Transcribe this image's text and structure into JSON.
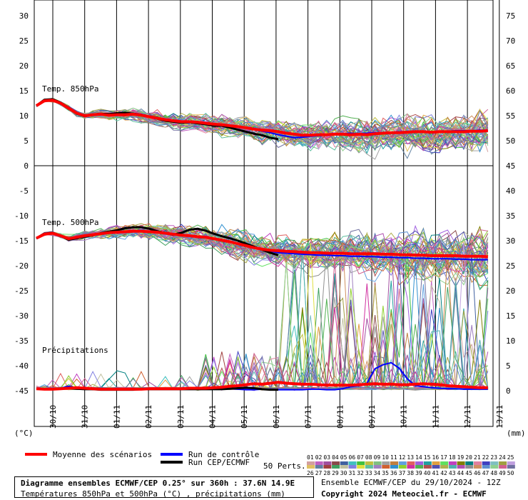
{
  "chart_data": {
    "type": "line",
    "x_dates": [
      "30/10",
      "31/10",
      "01/11",
      "02/11",
      "03/11",
      "04/11",
      "05/11",
      "06/11",
      "07/11",
      "08/11",
      "09/11",
      "10/11",
      "11/11",
      "12/11",
      "13/11"
    ],
    "left_axis": {
      "ticks": [
        "30",
        "25",
        "20",
        "15",
        "10",
        "5",
        "0",
        "-5",
        "-10",
        "-15",
        "-20",
        "-25",
        "-30",
        "-35",
        "-40",
        "-45"
      ],
      "unit_label": "(°C)"
    },
    "right_axis": {
      "ticks": [
        "75",
        "70",
        "65",
        "60",
        "55",
        "50",
        "45",
        "40",
        "35",
        "30",
        "25",
        "20",
        "15",
        "10",
        "5",
        "0"
      ],
      "unit_label": "(mm)"
    },
    "panels": {
      "t850": {
        "label": "Temp. 850hPa",
        "unit": "°C",
        "mean": [
          12,
          13,
          13.1,
          12.5,
          11.5,
          10.5,
          10,
          10.2,
          10.3,
          10.1,
          10.2,
          10.2,
          10.3,
          10.1,
          9.8,
          9.5,
          9.2,
          9,
          8.8,
          8.8,
          8.7,
          8.5,
          8.3,
          8.2,
          8,
          7.8,
          7.6,
          7.3,
          7.1,
          7,
          6.8,
          6.5,
          6.3,
          6.1,
          6.1,
          6.2,
          6.2,
          6.3,
          6.3,
          6.2,
          6.3,
          6.2,
          6.4,
          6.5,
          6.6,
          6.6,
          6.7,
          6.8,
          6.8,
          6.7,
          6.8,
          6.8,
          6.8,
          6.8,
          6.9,
          6.9,
          7
        ],
        "control": [
          12.1,
          13.1,
          13.2,
          12.6,
          11.6,
          10.6,
          10.1,
          10.3,
          10.4,
          10.2,
          10.3,
          10.3,
          10.4,
          10.2,
          9.9,
          9.6,
          9.3,
          9.1,
          8.9,
          8.9,
          8.8,
          8.6,
          8.4,
          8.3,
          8.1,
          7.9,
          7.6,
          7.2,
          6.9,
          6.6,
          6.2,
          5.9,
          5.6,
          5.7,
          5.9,
          6,
          6.2,
          6.3,
          6.4,
          6.5,
          6.4,
          6.5,
          6.6,
          6.6,
          6.7,
          6.8,
          6.8,
          6.9,
          6.9,
          6.8,
          6.9,
          6.9,
          7,
          7,
          7,
          7.1,
          7.1
        ],
        "hres": [
          12,
          13.2,
          13.3,
          12.6,
          11.6,
          10.4,
          9.9,
          10.2,
          10.4,
          10.3,
          10.5,
          10.6,
          10.4,
          10.2,
          9.8,
          9.4,
          9,
          8.8,
          8.6,
          8.7,
          8.5,
          8.3,
          8,
          8,
          7.6,
          7.2,
          6.8,
          6.4,
          6.1,
          5.6,
          5.3
        ]
      },
      "t500": {
        "label": "Temp. 500hPa",
        "unit": "°C",
        "mean": [
          -14.5,
          -13.7,
          -13.5,
          -14,
          -14.6,
          -14.3,
          -14,
          -13.8,
          -13.6,
          -13.4,
          -13.3,
          -13.2,
          -13.1,
          -13.1,
          -13.2,
          -13.3,
          -13.5,
          -13.7,
          -13.9,
          -14,
          -14.2,
          -14.3,
          -14.6,
          -14.9,
          -15.2,
          -15.6,
          -16,
          -16.4,
          -16.7,
          -16.9,
          -17,
          -17.1,
          -17.2,
          -17.3,
          -17.4,
          -17.4,
          -17.5,
          -17.5,
          -17.5,
          -17.6,
          -17.6,
          -17.6,
          -17.6,
          -17.7,
          -17.7,
          -17.8,
          -17.8,
          -17.9,
          -17.9,
          -18,
          -18,
          -18,
          -18,
          -18.1,
          -18.1,
          -18.1,
          -18.2
        ],
        "control": [
          -14.5,
          -13.8,
          -13.5,
          -14,
          -14.7,
          -14.4,
          -14.1,
          -13.8,
          -13.6,
          -13.4,
          -13.3,
          -13.1,
          -13,
          -13,
          -13.1,
          -13.2,
          -13.4,
          -13.6,
          -13.8,
          -14,
          -14.1,
          -14.3,
          -14.5,
          -14.9,
          -15.2,
          -15.6,
          -16,
          -16.4,
          -16.8,
          -17.1,
          -17.4,
          -17.5,
          -17.6,
          -17.7,
          -17.8,
          -17.9,
          -17.9,
          -18,
          -18,
          -18.1,
          -18.1,
          -18.2,
          -18.2,
          -18.3,
          -18.3,
          -18.4,
          -18.4,
          -18.5,
          -18.5,
          -18.6,
          -18.6,
          -18.6,
          -18.7,
          -18.7,
          -18.8,
          -18.8,
          -18.8
        ],
        "hres": [
          -14.5,
          -13.6,
          -13.4,
          -14,
          -14.8,
          -14.5,
          -14.2,
          -13.9,
          -13.5,
          -13.2,
          -12.9,
          -12.5,
          -12.3,
          -12.3,
          -12.6,
          -13.1,
          -13.5,
          -13.8,
          -13.4,
          -12.8,
          -12.6,
          -13,
          -13.6,
          -14.1,
          -14.5,
          -15,
          -15.6,
          -16.2,
          -16.8,
          -17.4,
          -17.9
        ]
      },
      "precip": {
        "label": "Précipitations",
        "unit": "mm",
        "mean": [
          0.4,
          0.3,
          0.3,
          0.4,
          0.5,
          0.6,
          0.5,
          0.4,
          0.3,
          0.3,
          0.3,
          0.3,
          0.3,
          0.3,
          0.4,
          0.4,
          0.4,
          0.4,
          0.4,
          0.5,
          0.5,
          0.5,
          0.6,
          0.7,
          0.9,
          1,
          1.2,
          1.4,
          1.3,
          1.5,
          1.7,
          1.5,
          1.4,
          1.3,
          1.3,
          1.2,
          1.1,
          1.1,
          1.1,
          1.1,
          1.2,
          1.3,
          1.4,
          1.3,
          1.3,
          1.2,
          1.2,
          1.3,
          1.4,
          1.3,
          1.2,
          1,
          0.9,
          0.8,
          0.7,
          0.6,
          0.6
        ],
        "control": [
          0.4,
          0.3,
          0.3,
          0.5,
          0.9,
          0.6,
          0.4,
          0.3,
          0.2,
          0.2,
          0.2,
          0.2,
          0.2,
          0.3,
          0.3,
          0.3,
          0.3,
          0.3,
          0.3,
          0.3,
          0.4,
          0.5,
          0.6,
          0.5,
          0.4,
          0.3,
          0.2,
          0.2,
          0.3,
          0.3,
          0.2,
          0.2,
          0.2,
          0.2,
          0.3,
          0.3,
          0.2,
          0.2,
          0.4,
          0.8,
          1,
          1.5,
          4.4,
          5.2,
          5.6,
          4.5,
          2.4,
          1,
          0.8,
          0.6,
          0.5,
          0.4,
          0.4,
          0.3,
          0.3,
          0.3,
          0.3
        ],
        "hres": [
          0.4,
          0.3,
          0.3,
          0.4,
          0.5,
          0.4,
          0.3,
          0.3,
          0.2,
          0.2,
          0.2,
          0.2,
          0.2,
          0.3,
          0.3,
          0.3,
          0.3,
          0.3,
          0.3,
          0.3,
          0.3,
          0.3,
          0.3,
          0.3,
          0.4,
          0.5,
          0.6,
          0.5,
          0.3,
          0.2,
          0.2
        ]
      }
    }
  },
  "legend": {
    "mean_label": "Moyenne des scénarios",
    "control_label": "Run de contrôle",
    "hres_label": "Run CEP/ECMWF",
    "perts_label": "50 Perts.",
    "colors": {
      "mean": "#ff0000",
      "control": "#0000ff",
      "hres": "#000000"
    },
    "pert_row1": [
      "01",
      "02",
      "03",
      "04",
      "05",
      "06",
      "07",
      "08",
      "09",
      "10",
      "11",
      "12",
      "13",
      "14",
      "15",
      "16",
      "17",
      "18",
      "19",
      "20",
      "21",
      "22",
      "23",
      "24",
      "25"
    ],
    "pert_row2": [
      "26",
      "27",
      "28",
      "29",
      "30",
      "31",
      "32",
      "33",
      "34",
      "35",
      "36",
      "37",
      "38",
      "39",
      "40",
      "41",
      "42",
      "43",
      "44",
      "45",
      "46",
      "47",
      "48",
      "49",
      "50"
    ],
    "pert_colors": [
      "#d2a0a0",
      "#c060c0",
      "#a050a0",
      "#8a4a4a",
      "#4060a0",
      "#40c0c0",
      "#40c040",
      "#c0c040",
      "#80c080",
      "#a0a0a0",
      "#c08040",
      "#60a0e0",
      "#e06060",
      "#a060e0",
      "#20a0a0",
      "#e0a040",
      "#60e060",
      "#c040c0",
      "#808000",
      "#008080",
      "#e080a0",
      "#4040c0",
      "#80c0c0",
      "#a0a040",
      "#c0a0e0",
      "#e0c060",
      "#6080a0",
      "#a04040",
      "#40a060",
      "#c0c0a0",
      "#8080e0",
      "#e0e040",
      "#60c0a0",
      "#a080c0",
      "#d06030",
      "#3090d0",
      "#90d030",
      "#d030a0",
      "#50b050",
      "#b05050",
      "#5050b0",
      "#b0b050",
      "#50b0b0",
      "#b050b0",
      "#909090",
      "#d09060",
      "#6090d0",
      "#90d090",
      "#d06090",
      "#7070a0"
    ]
  },
  "info": {
    "title": "Diagramme ensembles ECMWF/CEP 0.25° sur 360h : 37.6N 14.9E",
    "subtitle": "Températures 850hPa et 500hPa (°C) , précipitations (mm)",
    "run": "Ensemble ECMWF/CEP du 29/10/2024 - 12Z",
    "copyright": "Copyright 2024 Meteociel.fr - ECMWF"
  }
}
